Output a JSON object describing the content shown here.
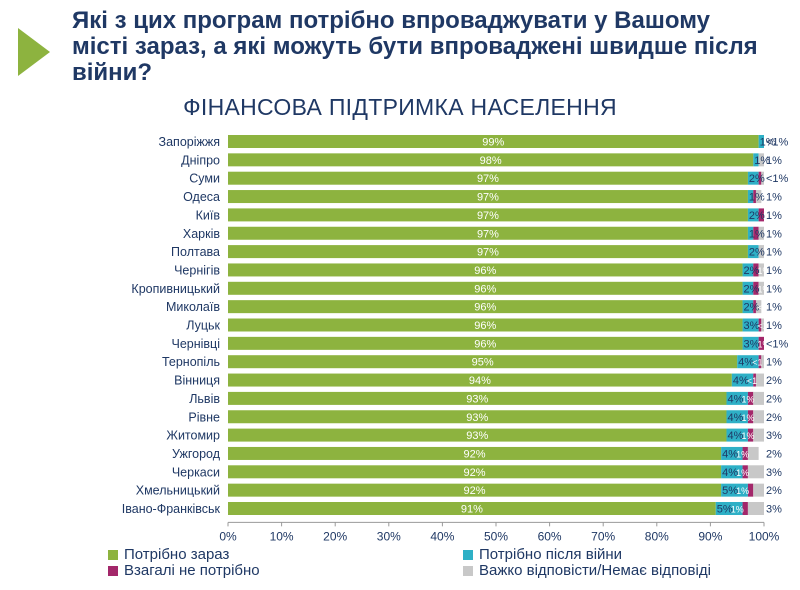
{
  "question": "Які з цих програм потрібно впроваджувати у Вашому місті зараз, а які можуть бути впроваджені швидше після війни?",
  "colors": {
    "now": "#8db33f",
    "after_war": "#2eb0c6",
    "not_needed": "#a3276a",
    "hard_to_say": "#c8c8c8",
    "title": "#1f3864",
    "arrow": "#8db33f"
  },
  "chart_data": {
    "type": "bar",
    "orientation": "horizontal",
    "stacked": true,
    "title": "ФІНАНСОВА ПІДТРИМКА НАСЕЛЕННЯ",
    "xlim": [
      0,
      100
    ],
    "x_ticks": [
      "0%",
      "10%",
      "20%",
      "30%",
      "40%",
      "50%",
      "60%",
      "70%",
      "80%",
      "90%",
      "100%"
    ],
    "grid": false,
    "legend_position": "bottom",
    "categories": [
      "Запоріжжя",
      "Дніпро",
      "Суми",
      "Одеса",
      "Київ",
      "Харків",
      "Полтава",
      "Чернігів",
      "Кропивницький",
      "Миколаїв",
      "Луцьк",
      "Чернівці",
      "Тернопіль",
      "Вінниця",
      "Львів",
      "Рівне",
      "Житомир",
      "Ужгород",
      "Черкаси",
      "Хмельницький",
      "Івано-Франківськ"
    ],
    "series": [
      {
        "name": "Потрібно зараз",
        "key": "now",
        "values": [
          99,
          98,
          97,
          97,
          97,
          97,
          97,
          96,
          96,
          96,
          96,
          96,
          95,
          94,
          93,
          93,
          93,
          92,
          92,
          92,
          91
        ],
        "labels": [
          "99%",
          "98%",
          "97%",
          "97%",
          "97%",
          "97%",
          "97%",
          "96%",
          "96%",
          "96%",
          "96%",
          "96%",
          "95%",
          "94%",
          "93%",
          "93%",
          "93%",
          "92%",
          "92%",
          "92%",
          "91%"
        ]
      },
      {
        "name": "Потрібно після війни",
        "key": "after_war",
        "values": [
          1,
          1,
          2,
          1,
          2,
          1,
          2,
          2,
          2,
          2,
          3,
          3,
          4,
          4,
          4,
          4,
          4,
          4,
          4,
          5,
          5
        ],
        "labels": [
          "1%",
          "1%",
          "2%",
          "1%",
          "2%",
          "1%",
          "2%",
          "2%",
          "2%",
          "2%",
          "3%",
          "3%",
          "4%",
          "4%",
          "4%",
          "4%",
          "4%",
          "4%",
          "4%",
          "5%",
          "5%"
        ]
      },
      {
        "name": "Взагалі не потрібно",
        "key": "not_needed",
        "values": [
          0.5,
          0,
          0.5,
          0.5,
          1,
          1,
          0,
          1,
          1,
          0.5,
          0.5,
          1,
          0.5,
          0.5,
          1,
          1,
          1,
          1,
          1,
          1,
          1
        ],
        "labels": [
          "<1",
          "",
          "1%",
          "<1",
          "1%",
          "1%",
          "",
          "1%",
          "1%",
          "<1",
          "<1",
          "1%",
          "<1",
          "<1",
          "1%",
          "1%",
          "1%",
          "1%",
          "1%",
          "1%",
          "1%"
        ]
      },
      {
        "name": "Важко відповісти/Немає відповіді",
        "key": "hard_to_say",
        "values": [
          0.5,
          1,
          0.5,
          1,
          1,
          1,
          1,
          1,
          1,
          1,
          1,
          0.5,
          1,
          2,
          2,
          2,
          3,
          2,
          3,
          2,
          3
        ],
        "labels": [
          "<1%",
          "1%",
          "<1%",
          "1%",
          "1%",
          "1%",
          "1%",
          "1%",
          "1%",
          "1%",
          "1%",
          "<1%",
          "1%",
          "2%",
          "2%",
          "2%",
          "3%",
          "2%",
          "3%",
          "2%",
          "3%"
        ]
      }
    ]
  }
}
